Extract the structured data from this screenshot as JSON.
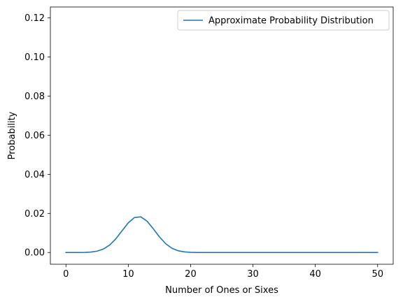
{
  "chart_data": {
    "type": "line",
    "title": "",
    "xlabel": "Number of Ones or Sixes",
    "ylabel": "Probability",
    "xlim": [
      -2.5,
      52.5
    ],
    "ylim": [
      -0.006,
      0.1256
    ],
    "xticks": [
      0,
      10,
      20,
      30,
      40,
      50
    ],
    "xtick_labels": [
      "0",
      "10",
      "20",
      "30",
      "40",
      "50"
    ],
    "yticks": [
      0.0,
      0.02,
      0.04,
      0.06,
      0.08,
      0.1,
      0.12
    ],
    "ytick_labels": [
      "0.00",
      "0.02",
      "0.04",
      "0.06",
      "0.08",
      "0.10",
      "0.12"
    ],
    "grid": false,
    "legend_position": "upper right",
    "series": [
      {
        "name": "Approximate Probability Distribution",
        "color": "#1f77b4",
        "x": [
          0,
          1,
          2,
          3,
          4,
          5,
          6,
          7,
          8,
          9,
          10,
          11,
          12,
          13,
          14,
          15,
          16,
          17,
          18,
          19,
          20,
          21,
          22,
          23,
          24,
          25,
          26,
          27,
          28,
          29,
          30,
          31,
          32,
          33,
          34,
          35,
          36,
          37,
          38,
          39,
          40,
          41,
          42,
          43,
          44,
          45,
          46,
          47,
          48,
          49,
          50
        ],
        "y": [
          1.6e-06,
          4.1e-06,
          1.79e-05,
          7.11e-05,
          0.0002423,
          0.0007077,
          0.0017693,
          0.0037966,
          0.0070008,
          0.0111065,
          0.0151808,
          0.0179049,
          0.0182422,
          0.0160562,
          0.0121954,
          0.0079868,
          0.0044996,
          0.0021743,
          0.0008986,
          0.0003164,
          9.49e-05,
          2.4e-05,
          5.1e-06,
          9e-07,
          1e-07,
          0,
          0,
          0,
          0,
          0,
          0,
          0,
          0,
          0,
          0,
          0,
          0,
          0,
          0,
          0,
          0,
          0,
          0,
          0,
          0,
          0,
          0,
          0,
          0,
          0,
          0
        ]
      }
    ]
  }
}
